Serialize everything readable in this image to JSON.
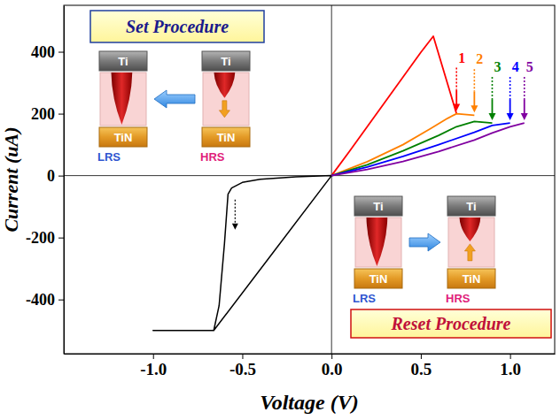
{
  "chart_data": {
    "type": "line",
    "x_label": "Voltage (V)",
    "y_label": "Current (uA)",
    "xlim": [
      -1.5,
      1.25
    ],
    "ylim": [
      -575,
      550
    ],
    "xticks": [
      {
        "value": -1,
        "label": "-1.0"
      },
      {
        "value": -0.5,
        "label": "-0.5"
      },
      {
        "value": 0,
        "label": "0.0"
      },
      {
        "value": 0.5,
        "label": "0.5"
      },
      {
        "value": 1,
        "label": "1.0"
      }
    ],
    "yticks": [
      -400,
      -200,
      0,
      200,
      400
    ],
    "grid": false,
    "series": [
      {
        "color": "#000000",
        "x": [
          0,
          -0.2,
          -0.4,
          -0.5,
          -0.56,
          -0.58,
          -0.6,
          -0.63,
          -0.66,
          -1.0,
          -0.66,
          -0.33,
          0
        ],
        "values": [
          0,
          -4,
          -12,
          -22,
          -40,
          -60,
          -220,
          -420,
          -500,
          -500,
          -500,
          -250,
          0
        ]
      },
      {
        "name": "1",
        "color": "#ff0000",
        "x": [
          0,
          0.1,
          0.2,
          0.3,
          0.4,
          0.5,
          0.57,
          0.7
        ],
        "values": [
          0,
          78,
          158,
          238,
          318,
          398,
          450,
          200
        ]
      },
      {
        "name": "2",
        "color": "#ff8000",
        "x": [
          0,
          0.2,
          0.4,
          0.55,
          0.65,
          0.7,
          0.8
        ],
        "values": [
          0,
          45,
          100,
          150,
          185,
          200,
          195
        ]
      },
      {
        "name": "3",
        "color": "#008000",
        "x": [
          0,
          0.2,
          0.4,
          0.6,
          0.7,
          0.8,
          0.9
        ],
        "values": [
          0,
          35,
          80,
          130,
          158,
          175,
          170
        ]
      },
      {
        "name": "4",
        "color": "#0000ff",
        "x": [
          0,
          0.2,
          0.4,
          0.6,
          0.8,
          0.9,
          1.0
        ],
        "values": [
          0,
          28,
          62,
          100,
          140,
          162,
          170
        ]
      },
      {
        "name": "5",
        "color": "#8000a0",
        "x": [
          0,
          0.2,
          0.4,
          0.6,
          0.8,
          0.9,
          1.0,
          1.08
        ],
        "values": [
          0,
          20,
          46,
          78,
          115,
          138,
          158,
          170
        ]
      }
    ],
    "annotations": [
      {
        "text": "Set Procedure",
        "devices": [
          {
            "label": "LRS",
            "top": "Ti",
            "bottom": "TiN"
          },
          {
            "label": "HRS",
            "top": "Ti",
            "bottom": "TiN"
          }
        ]
      },
      {
        "text": "Reset Procedure",
        "devices": [
          {
            "label": "LRS",
            "top": "Ti",
            "bottom": "TiN"
          },
          {
            "label": "HRS",
            "top": "Ti",
            "bottom": "TiN"
          }
        ]
      }
    ]
  }
}
